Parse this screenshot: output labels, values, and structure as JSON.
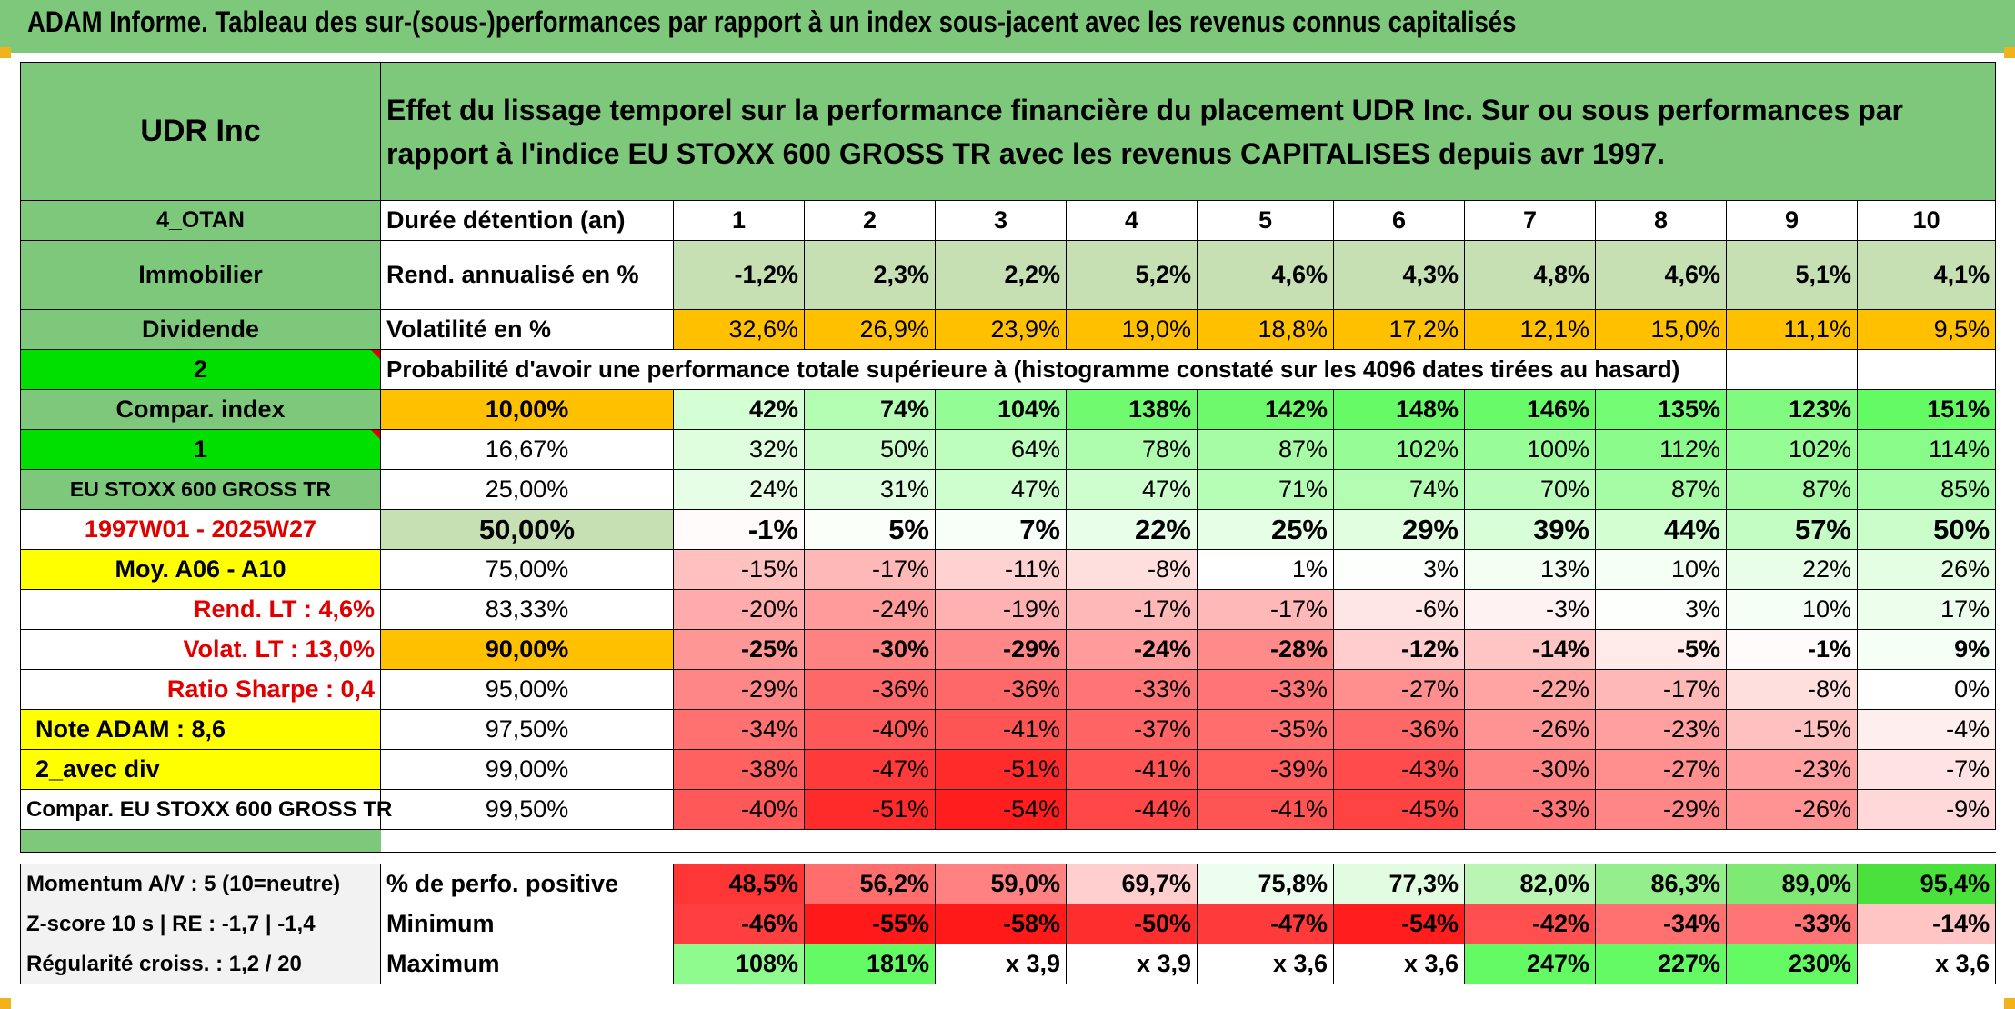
{
  "title": "ADAM Informe. Tableau des sur-(sous-)performances par rapport à un index sous-jacent avec les revenus connus capitalisés",
  "header": {
    "name": "UDR Inc",
    "description": "Effet du lissage temporel sur la performance financière du placement UDR Inc. Sur ou sous performances par rapport à l'indice EU STOXX 600 GROSS TR avec les revenus CAPITALISES depuis avr 1997."
  },
  "left": {
    "code": "4_OTAN",
    "sector": "Immobilier",
    "type": "Dividende",
    "choice": "2",
    "compar_label": "Compar. index",
    "index_num": "1",
    "index_name": "EU STOXX 600 GROSS TR",
    "period": "1997W01 - 2025W27",
    "moy": "Moy. A06 - A10",
    "rend": "Rend. LT :   4,6%",
    "volat": "Volat. LT :   13,0%",
    "sharpe": "Ratio Sharpe :   0,4",
    "note": "Note ADAM : 8,6",
    "avec_div": "2_avec div",
    "compar_full": "Compar. EU STOXX 600 GROSS TR",
    "momentum": "Momentum A/V : 5 (10=neutre)",
    "zscore": "Z-score 10 s | RE : -1,7 | -1,4",
    "regularite": "Régularité croiss. : 1,2 / 20"
  },
  "rows": {
    "duree_label": "Durée détention (an)",
    "years": [
      "1",
      "2",
      "3",
      "4",
      "5",
      "6",
      "7",
      "8",
      "9",
      "10"
    ],
    "rend_label": "Rend. annualisé en %",
    "rend": [
      "-1,2%",
      "2,3%",
      "2,2%",
      "5,2%",
      "4,6%",
      "4,3%",
      "4,8%",
      "4,6%",
      "5,1%",
      "4,1%"
    ],
    "vol_label": "Volatilité en %",
    "vol": [
      "32,6%",
      "26,9%",
      "23,9%",
      "19,0%",
      "18,8%",
      "17,2%",
      "12,1%",
      "15,0%",
      "11,1%",
      "9,5%"
    ],
    "prob_label": "Probabilité d'avoir une performance totale supérieure à (histogramme constaté sur les 4096 dates tirées au hasard)"
  },
  "prob": [
    {
      "p": "10,00%",
      "v": [
        "42%",
        "74%",
        "104%",
        "138%",
        "142%",
        "148%",
        "146%",
        "135%",
        "123%",
        "151%"
      ]
    },
    {
      "p": "16,67%",
      "v": [
        "32%",
        "50%",
        "64%",
        "78%",
        "87%",
        "102%",
        "100%",
        "112%",
        "102%",
        "114%"
      ]
    },
    {
      "p": "25,00%",
      "v": [
        "24%",
        "31%",
        "47%",
        "47%",
        "71%",
        "74%",
        "70%",
        "87%",
        "87%",
        "85%"
      ]
    },
    {
      "p": "50,00%",
      "v": [
        "-1%",
        "5%",
        "7%",
        "22%",
        "25%",
        "29%",
        "39%",
        "44%",
        "57%",
        "50%"
      ]
    },
    {
      "p": "75,00%",
      "v": [
        "-15%",
        "-17%",
        "-11%",
        "-8%",
        "1%",
        "3%",
        "13%",
        "10%",
        "22%",
        "26%"
      ]
    },
    {
      "p": "83,33%",
      "v": [
        "-20%",
        "-24%",
        "-19%",
        "-17%",
        "-17%",
        "-6%",
        "-3%",
        "3%",
        "10%",
        "17%"
      ]
    },
    {
      "p": "90,00%",
      "v": [
        "-25%",
        "-30%",
        "-29%",
        "-24%",
        "-28%",
        "-12%",
        "-14%",
        "-5%",
        "-1%",
        "9%"
      ]
    },
    {
      "p": "95,00%",
      "v": [
        "-29%",
        "-36%",
        "-36%",
        "-33%",
        "-33%",
        "-27%",
        "-22%",
        "-17%",
        "-8%",
        "0%"
      ]
    },
    {
      "p": "97,50%",
      "v": [
        "-34%",
        "-40%",
        "-41%",
        "-37%",
        "-35%",
        "-36%",
        "-26%",
        "-23%",
        "-15%",
        "-4%"
      ]
    },
    {
      "p": "99,00%",
      "v": [
        "-38%",
        "-47%",
        "-51%",
        "-41%",
        "-39%",
        "-43%",
        "-30%",
        "-27%",
        "-23%",
        "-7%"
      ]
    },
    {
      "p": "99,50%",
      "v": [
        "-40%",
        "-51%",
        "-54%",
        "-44%",
        "-41%",
        "-45%",
        "-33%",
        "-29%",
        "-26%",
        "-9%"
      ]
    }
  ],
  "stats": {
    "pos_label": "% de perfo. positive",
    "pos": [
      "48,5%",
      "56,2%",
      "59,0%",
      "69,7%",
      "75,8%",
      "77,3%",
      "82,0%",
      "86,3%",
      "89,0%",
      "95,4%"
    ],
    "min_label": "Minimum",
    "min": [
      "-46%",
      "-55%",
      "-58%",
      "-50%",
      "-47%",
      "-54%",
      "-42%",
      "-34%",
      "-33%",
      "-14%"
    ],
    "max_label": "Maximum",
    "max": [
      "108%",
      "181%",
      "x 3,9",
      "x 3,9",
      "x 3,6",
      "x 3,6",
      "247%",
      "227%",
      "230%",
      "x 3,6"
    ]
  },
  "colors": {
    "header_green": "#7dc87a",
    "light_green": "#c6e0b4",
    "bright_green": "#00e000",
    "yellow": "#ffff00",
    "orange": "#ffc000",
    "red_text": "#e00000"
  }
}
